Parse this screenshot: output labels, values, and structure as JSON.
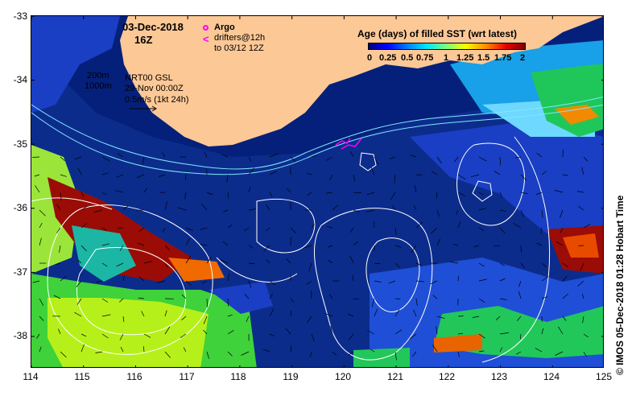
{
  "header": {
    "date": "03-Dec-2018",
    "time": "16Z"
  },
  "legend": {
    "argo_label": "Argo",
    "drifters_label": "drifters@12h",
    "drifters_sub": "to 03/12 12Z",
    "argo_color": "#ff00ff"
  },
  "info": {
    "iso200": "200m",
    "iso1000": "1000m",
    "gsl": "NRT00 GSL",
    "gsl_date": "29-Nov 00:00Z",
    "vel_scale": "0.5m/s (1kt 24h)"
  },
  "colorbar": {
    "title": "Age (days) of filled SST (wrt latest)",
    "ticks": [
      "0",
      "0.25",
      "0.5",
      "0.75",
      "1",
      "1.25",
      "1.5",
      "1.75",
      "2"
    ],
    "colors": [
      "#00007f",
      "#0000ff",
      "#0080ff",
      "#00e5ff",
      "#7dff7a",
      "#f7ff00",
      "#ff8c00",
      "#e60000",
      "#7f0000"
    ]
  },
  "axes": {
    "lon_ticks": [
      "114",
      "115",
      "116",
      "117",
      "118",
      "119",
      "120",
      "121",
      "122",
      "123",
      "124",
      "125"
    ],
    "lat_ticks": [
      "-33",
      "-34",
      "-35",
      "-36",
      "-37",
      "-38"
    ],
    "lon_range": [
      114,
      125
    ],
    "lat_range": [
      -38.5,
      -33
    ]
  },
  "credit": "©  IMOS 05-Dec-2018 01:28 Hobart Time",
  "colors": {
    "land": "#fcc896",
    "ocean_deep": "#0c2c8c",
    "contour": "#ffffff",
    "isobath": "#7fe8ff"
  }
}
